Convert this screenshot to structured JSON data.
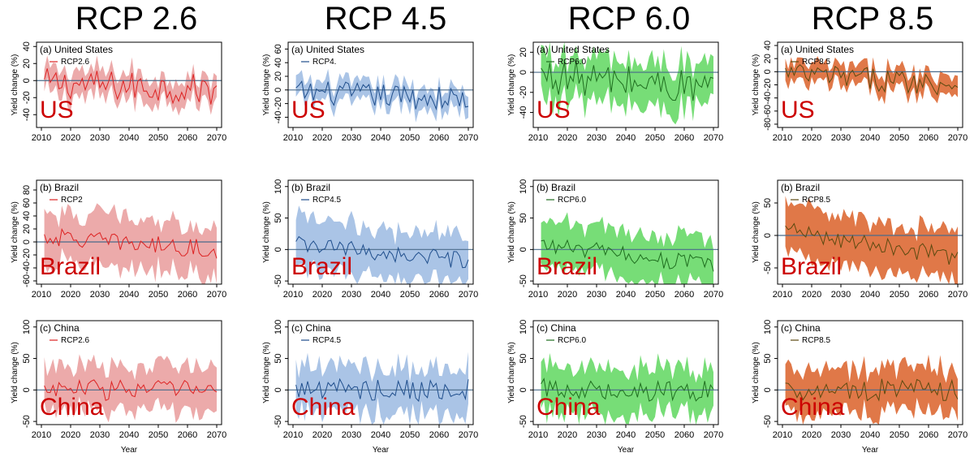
{
  "chart_data": {
    "type": "area",
    "x_label": "Year",
    "y_label": "Yield change (%)",
    "x_ticks": [
      2010,
      2020,
      2030,
      2040,
      2050,
      2060,
      2070
    ],
    "years": [
      2011,
      2012,
      2013,
      2014,
      2015,
      2016,
      2017,
      2018,
      2019,
      2020,
      2021,
      2022,
      2023,
      2024,
      2025,
      2026,
      2027,
      2028,
      2029,
      2030,
      2031,
      2032,
      2033,
      2034,
      2035,
      2036,
      2037,
      2038,
      2039,
      2040,
      2041,
      2042,
      2043,
      2044,
      2045,
      2046,
      2047,
      2048,
      2049,
      2050,
      2051,
      2052,
      2053,
      2054,
      2055,
      2056,
      2057,
      2058,
      2059,
      2060,
      2061,
      2062,
      2063,
      2064,
      2065,
      2066,
      2067,
      2068,
      2069,
      2070
    ],
    "columns": [
      {
        "title": "RCP 2.6",
        "legend": [
          "RCP2.6",
          "RCP2",
          "RCP2.6"
        ],
        "line_color": "#dd2222",
        "band_color": "#ecaaaa"
      },
      {
        "title": "RCP 4.5",
        "legend": [
          "RCP4.",
          "RCP4.5",
          "RCP4.5"
        ],
        "line_color": "#1f4e8c",
        "band_color": "#aac4e6"
      },
      {
        "title": "RCP 6.0",
        "legend": [
          "RCP6.0",
          "RCP6.0",
          "RCP6.0"
        ],
        "line_color": "#1f6e1f",
        "band_color": "#77dd77"
      },
      {
        "title": "RCP 8.5",
        "legend": [
          "RCP8.5",
          "RCP8.5",
          "RCP8.5"
        ],
        "line_color": "#5c4a10",
        "band_color": "#e07848"
      }
    ],
    "rows": [
      {
        "panel": "(a) United States",
        "country": "US",
        "ylim": [
          -55,
          45
        ],
        "ticks": [
          -40,
          -20,
          0,
          20,
          40
        ],
        "band_width": 15,
        "base_mean": -3,
        "trend": -8,
        "amplitude": 18
      },
      {
        "panel": "(b) Brazil",
        "country": "Brazil",
        "ylim": [
          -65,
          95
        ],
        "ticks": [
          -60,
          -40,
          -20,
          0,
          20,
          40,
          60,
          80
        ],
        "band_width": 38,
        "base_mean": 8,
        "trend": -20,
        "amplitude": 14
      },
      {
        "panel": "(c) China",
        "country": "China",
        "ylim": [
          -55,
          110
        ],
        "ticks": [
          -50,
          0,
          50,
          100
        ],
        "band_width": 35,
        "base_mean": 2,
        "trend": -2,
        "amplitude": 18
      }
    ],
    "col_ylims": [
      [
        [
          -55,
          45
        ],
        [
          -65,
          95
        ],
        [
          -55,
          110
        ]
      ],
      [
        [
          -55,
          70
        ],
        [
          -55,
          110
        ],
        [
          -55,
          110
        ]
      ],
      [
        [
          -55,
          30
        ],
        [
          -55,
          110
        ],
        [
          -55,
          110
        ]
      ],
      [
        [
          -85,
          45
        ],
        [
          -75,
          85
        ],
        [
          -55,
          110
        ]
      ]
    ],
    "col_ticks": [
      [
        [
          -40,
          -20,
          0,
          20,
          40
        ],
        [
          -60,
          -40,
          -20,
          0,
          20,
          40,
          60,
          80
        ],
        [
          -50,
          0,
          50,
          100
        ]
      ],
      [
        [
          -40,
          -20,
          0,
          20,
          40,
          60
        ],
        [
          -50,
          0,
          50,
          100
        ],
        [
          -50,
          0,
          50,
          100
        ]
      ],
      [
        [
          -40,
          -20,
          0,
          20
        ],
        [
          -50,
          0,
          50,
          100
        ],
        [
          -50,
          0,
          50,
          100
        ]
      ],
      [
        [
          -80,
          -60,
          -40,
          -20,
          0,
          20,
          40
        ],
        [
          -50,
          0,
          50
        ],
        [
          -50,
          0,
          50,
          100
        ]
      ]
    ]
  }
}
